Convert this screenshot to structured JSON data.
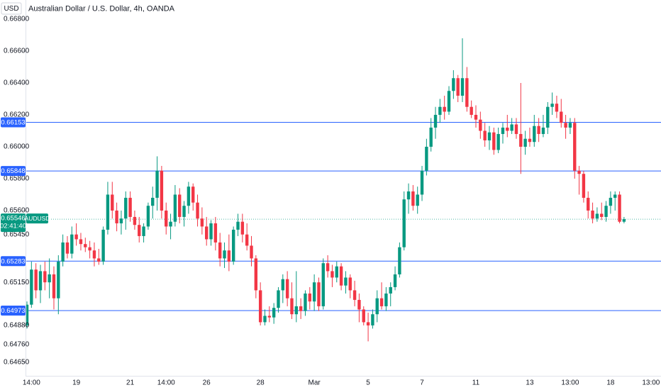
{
  "chart_data": {
    "type": "candlestick",
    "title": "Australian Dollar / U.S. Dollar, 4h, OANDA",
    "currency": "USD",
    "up_color": "#089981",
    "down_color": "#f23645",
    "line_color": "#2962ff",
    "ylim": [
      0.64564,
      0.6692
    ],
    "yticks": [
      {
        "value": 0.668,
        "label": "0.66800"
      },
      {
        "value": 0.666,
        "label": "0.66600"
      },
      {
        "value": 0.664,
        "label": "0.66400"
      },
      {
        "value": 0.662,
        "label": "0.66200"
      },
      {
        "value": 0.66,
        "label": "0.66000"
      },
      {
        "value": 0.658,
        "label": "0.65800"
      },
      {
        "value": 0.656,
        "label": "0.65600"
      },
      {
        "value": 0.6545,
        "label": "0.65450"
      },
      {
        "value": 0.6515,
        "label": "0.65150"
      },
      {
        "value": 0.6488,
        "label": "0.64880"
      },
      {
        "value": 0.6476,
        "label": "0.64760"
      },
      {
        "value": 0.6465,
        "label": "0.64650"
      }
    ],
    "hlines": [
      {
        "value": 0.66153,
        "label": "0.66153"
      },
      {
        "value": 0.65848,
        "label": "0.65848"
      },
      {
        "value": 0.65283,
        "label": "0.65283"
      },
      {
        "value": 0.64973,
        "label": "0.64973"
      }
    ],
    "current_price": {
      "value": 0.65546,
      "label": "0.65546",
      "symbol": "AUDUSD",
      "countdown": "02:41:40"
    },
    "categories": [
      null,
      "14:00",
      null,
      null,
      null,
      null,
      null,
      null,
      null,
      null,
      null,
      "19",
      null,
      null,
      null,
      null,
      null,
      null,
      null,
      null,
      null,
      null,
      null,
      "21",
      null,
      null,
      null,
      null,
      null,
      null,
      null,
      "14:00",
      null,
      null,
      null,
      null,
      null,
      null,
      null,
      null,
      "26",
      null,
      null,
      null,
      null,
      null,
      null,
      null,
      null,
      null,
      null,
      null,
      "28",
      null,
      null,
      null,
      null,
      null,
      null,
      null,
      null,
      null,
      null,
      null,
      "Mar",
      null,
      null,
      null,
      null,
      null,
      null,
      null,
      null,
      null,
      null,
      null,
      "5",
      null,
      null,
      null,
      null,
      null,
      null,
      null,
      null,
      null,
      null,
      null,
      "7",
      null,
      null,
      null,
      null,
      null,
      null,
      null,
      null,
      null,
      null,
      null,
      "11",
      null,
      null,
      null,
      null,
      null,
      null,
      null,
      null,
      null,
      null,
      null,
      "13",
      null,
      null,
      null,
      null,
      null,
      null,
      null,
      null,
      "13:00",
      null,
      null,
      null,
      null,
      null,
      null,
      null,
      null,
      "18",
      null,
      null,
      null,
      null,
      null,
      null,
      null,
      null,
      "13:00",
      null
    ],
    "open": [
      0.6488,
      0.6501,
      0.6523,
      0.651,
      0.6522,
      0.6515,
      0.652,
      0.6505,
      0.6528,
      0.654,
      0.6533,
      0.6545,
      0.6542,
      0.6539,
      0.6537,
      0.6535,
      0.653,
      0.6528,
      0.6548,
      0.657,
      0.656,
      0.6552,
      0.6555,
      0.6568,
      0.6556,
      0.6551,
      0.6544,
      0.655,
      0.6563,
      0.6568,
      0.6585,
      0.656,
      0.655,
      0.6553,
      0.657,
      0.6556,
      0.6563,
      0.6575,
      0.6565,
      0.6555,
      0.655,
      0.6542,
      0.6552,
      0.654,
      0.653,
      0.6535,
      0.6528,
      0.6548,
      0.6553,
      0.6545,
      0.6538,
      0.653,
      0.651,
      0.649,
      0.6494,
      0.6493,
      0.6499,
      0.651,
      0.6517,
      0.6505,
      0.6495,
      0.65,
      0.6497,
      0.6508,
      0.6503,
      0.6515,
      0.65,
      0.6527,
      0.6522,
      0.6518,
      0.6525,
      0.6513,
      0.6518,
      0.651,
      0.6504,
      0.6498,
      0.649,
      0.6488,
      0.6495,
      0.6505,
      0.65,
      0.6508,
      0.6512,
      0.652,
      0.6537,
      0.6567,
      0.6572,
      0.6563,
      0.657,
      0.6585,
      0.66,
      0.6612,
      0.662,
      0.6625,
      0.6622,
      0.6635,
      0.6643,
      0.6632,
      0.6643,
      0.6625,
      0.662,
      0.6617,
      0.661,
      0.6604,
      0.6609,
      0.6598,
      0.6608,
      0.6612,
      0.661,
      0.6614,
      0.6608,
      0.66,
      0.6605,
      0.6603,
      0.6613,
      0.6608,
      0.6612,
      0.6625,
      0.6627,
      0.6622,
      0.6615,
      0.6612,
      0.6615,
      0.6585,
      0.6583,
      0.6568,
      0.656,
      0.6555,
      0.6558,
      0.6556,
      0.6563,
      0.6568,
      0.657,
      0.6553,
      null,
      null,
      null,
      null,
      null,
      null,
      null
    ],
    "high": [
      0.6503,
      0.6528,
      0.6527,
      0.6526,
      0.6528,
      0.653,
      0.6525,
      0.6532,
      0.6545,
      0.6544,
      0.655,
      0.6552,
      0.6546,
      0.6543,
      0.6541,
      0.654,
      0.6536,
      0.655,
      0.6578,
      0.6578,
      0.6565,
      0.656,
      0.6572,
      0.6572,
      0.656,
      0.6556,
      0.6552,
      0.6565,
      0.6575,
      0.6594,
      0.6588,
      0.6565,
      0.6558,
      0.6576,
      0.6574,
      0.6566,
      0.6578,
      0.6577,
      0.657,
      0.6562,
      0.6556,
      0.6554,
      0.6556,
      0.6546,
      0.654,
      0.6545,
      0.655,
      0.6558,
      0.6558,
      0.6552,
      0.6544,
      0.6532,
      0.6515,
      0.6498,
      0.65,
      0.6502,
      0.6512,
      0.652,
      0.6522,
      0.6515,
      0.6522,
      0.6505,
      0.651,
      0.6512,
      0.652,
      0.6518,
      0.653,
      0.6532,
      0.6526,
      0.6528,
      0.6527,
      0.6522,
      0.652,
      0.6516,
      0.6508,
      0.65,
      0.6496,
      0.6498,
      0.651,
      0.6515,
      0.6512,
      0.6515,
      0.6525,
      0.654,
      0.6572,
      0.6577,
      0.6576,
      0.6575,
      0.6588,
      0.6605,
      0.6618,
      0.6625,
      0.663,
      0.6632,
      0.6638,
      0.6648,
      0.6645,
      0.6668,
      0.665,
      0.6629,
      0.6626,
      0.6622,
      0.6615,
      0.6613,
      0.6612,
      0.6612,
      0.6615,
      0.662,
      0.6618,
      0.6618,
      0.664,
      0.661,
      0.6612,
      0.662,
      0.6618,
      0.662,
      0.6628,
      0.6634,
      0.6632,
      0.663,
      0.662,
      0.6618,
      0.6618,
      0.6588,
      0.6585,
      0.6572,
      0.6565,
      0.6562,
      0.6565,
      0.6566,
      0.6572,
      0.6572,
      0.6572,
      0.6556,
      null,
      null,
      null,
      null,
      null,
      null,
      null
    ],
    "low": [
      0.6486,
      0.6499,
      0.6505,
      0.6502,
      0.651,
      0.6505,
      0.6498,
      0.6495,
      0.6525,
      0.653,
      0.653,
      0.6538,
      0.6535,
      0.6534,
      0.653,
      0.6525,
      0.6526,
      0.6526,
      0.6545,
      0.6555,
      0.6547,
      0.6545,
      0.6548,
      0.6553,
      0.6548,
      0.654,
      0.654,
      0.6548,
      0.6555,
      0.656,
      0.6555,
      0.6545,
      0.6542,
      0.655,
      0.6552,
      0.655,
      0.6558,
      0.656,
      0.655,
      0.6545,
      0.6538,
      0.6538,
      0.6535,
      0.6525,
      0.6524,
      0.6522,
      0.6526,
      0.6544,
      0.654,
      0.6535,
      0.6525,
      0.6505,
      0.6488,
      0.6488,
      0.649,
      0.6489,
      0.6496,
      0.6502,
      0.65,
      0.6492,
      0.649,
      0.6492,
      0.6494,
      0.6498,
      0.6497,
      0.6497,
      0.6498,
      0.6518,
      0.6512,
      0.6515,
      0.651,
      0.6508,
      0.6505,
      0.65,
      0.649,
      0.6488,
      0.6478,
      0.6486,
      0.649,
      0.6498,
      0.6497,
      0.65,
      0.651,
      0.6518,
      0.6535,
      0.6558,
      0.656,
      0.6558,
      0.6566,
      0.6582,
      0.6597,
      0.6605,
      0.6615,
      0.6617,
      0.662,
      0.663,
      0.6628,
      0.6628,
      0.6622,
      0.6618,
      0.6612,
      0.6605,
      0.66,
      0.6598,
      0.6595,
      0.6596,
      0.6602,
      0.6606,
      0.6608,
      0.6605,
      0.6583,
      0.6595,
      0.66,
      0.66,
      0.6603,
      0.6606,
      0.6608,
      0.662,
      0.6618,
      0.6612,
      0.6605,
      0.6608,
      0.658,
      0.657,
      0.6565,
      0.6555,
      0.6552,
      0.6553,
      0.6554,
      0.6553,
      0.6558,
      0.656,
      0.6552,
      0.6552,
      null,
      null,
      null,
      null,
      null,
      null,
      null
    ],
    "close": [
      0.6501,
      0.6523,
      0.651,
      0.6522,
      0.6515,
      0.652,
      0.6505,
      0.6528,
      0.654,
      0.6533,
      0.6545,
      0.6542,
      0.6539,
      0.6537,
      0.6535,
      0.653,
      0.6528,
      0.6548,
      0.657,
      0.656,
      0.6552,
      0.6555,
      0.6568,
      0.6556,
      0.6551,
      0.6544,
      0.655,
      0.6563,
      0.6568,
      0.6585,
      0.656,
      0.655,
      0.6553,
      0.657,
      0.6556,
      0.6563,
      0.6575,
      0.6565,
      0.6555,
      0.655,
      0.6542,
      0.6552,
      0.654,
      0.653,
      0.6535,
      0.6528,
      0.6548,
      0.6553,
      0.6545,
      0.6538,
      0.653,
      0.651,
      0.649,
      0.6494,
      0.6493,
      0.6499,
      0.651,
      0.6517,
      0.6505,
      0.6495,
      0.65,
      0.6497,
      0.6508,
      0.6503,
      0.6515,
      0.65,
      0.6527,
      0.6522,
      0.6518,
      0.6525,
      0.6513,
      0.6518,
      0.651,
      0.6504,
      0.6498,
      0.649,
      0.6488,
      0.6495,
      0.6505,
      0.65,
      0.6508,
      0.6512,
      0.652,
      0.6537,
      0.6567,
      0.6572,
      0.6563,
      0.657,
      0.6585,
      0.66,
      0.6612,
      0.662,
      0.6625,
      0.6622,
      0.6635,
      0.6643,
      0.6632,
      0.6643,
      0.6625,
      0.662,
      0.6617,
      0.661,
      0.6604,
      0.6609,
      0.6598,
      0.6608,
      0.6612,
      0.661,
      0.6614,
      0.6608,
      0.66,
      0.6605,
      0.6603,
      0.6613,
      0.6608,
      0.6612,
      0.6625,
      0.6627,
      0.6622,
      0.6615,
      0.6612,
      0.6615,
      0.6585,
      0.6583,
      0.6568,
      0.656,
      0.6555,
      0.6558,
      0.6556,
      0.6563,
      0.6568,
      0.657,
      0.6553,
      0.65546,
      null,
      null,
      null,
      null,
      null,
      null,
      null
    ]
  }
}
